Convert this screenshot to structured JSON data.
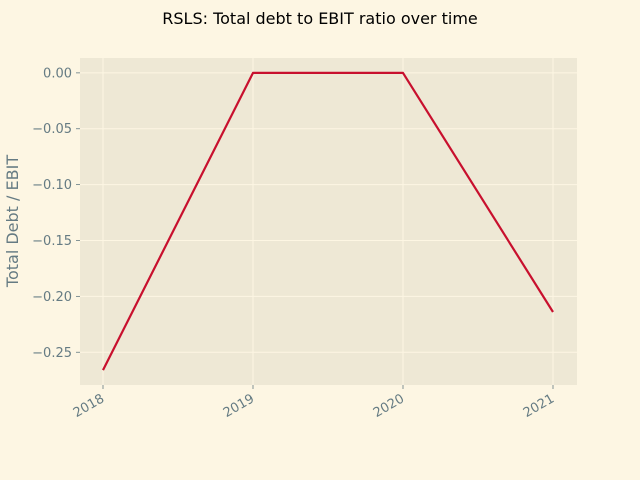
{
  "colors": {
    "background": "#fdf6e3",
    "plot_background": "#eee8d5",
    "grid": "#fdf6e3",
    "line": "#c8102e",
    "text": "#657b83",
    "title": "#000000"
  },
  "chart_data": {
    "type": "line",
    "title": "RSLS: Total debt to EBIT ratio over time",
    "xlabel": "",
    "ylabel": "Total Debt / EBIT",
    "x": [
      "2018",
      "2019",
      "2020",
      "2021"
    ],
    "series": [
      {
        "values": [
          -0.266,
          0.0,
          0.0,
          -0.214
        ]
      }
    ],
    "yticks": [
      "0.00",
      "−0.05",
      "−0.10",
      "−0.15",
      "−0.20",
      "−0.25"
    ],
    "ytick_values": [
      0.0,
      -0.05,
      -0.1,
      -0.15,
      -0.2,
      -0.25
    ],
    "ylim": [
      -0.2793,
      0.0133
    ],
    "grid": true,
    "legend": "none"
  }
}
